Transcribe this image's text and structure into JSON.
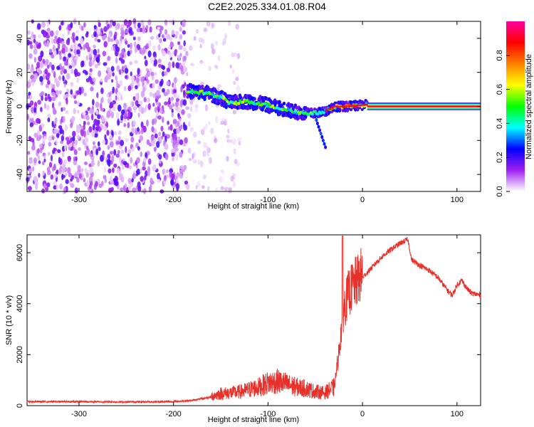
{
  "title": "C2E2.2025.334.01.08.R04",
  "chart_data": [
    {
      "type": "heatmap",
      "xlabel": "Height of straight line (km)",
      "ylabel": "Frequency (Hz)",
      "xlim": [
        -355,
        125
      ],
      "ylim": [
        -50,
        50
      ],
      "xticks": [
        -300,
        -200,
        -100,
        0,
        100
      ],
      "yticks": [
        -40,
        -20,
        0,
        20,
        40
      ],
      "colorbar": {
        "label": "Normalized spectral amplitude",
        "range": [
          0,
          1
        ],
        "ticks": [
          "0.0",
          "0.2",
          "0.4",
          "0.6",
          "0.8"
        ],
        "tick_values": [
          0,
          0.2,
          0.4,
          0.6,
          0.8
        ],
        "colors": [
          "#ffffff",
          "#a020f0",
          "#0000ff",
          "#00ffff",
          "#00ff00",
          "#ffff00",
          "#ff8000",
          "#ff0000",
          "#ff00a0"
        ]
      },
      "description_features": {
        "noise_region_x": [
          -355,
          -185
        ],
        "track_start_x": -185,
        "track_points": [
          [
            -185,
            9
          ],
          [
            -165,
            8
          ],
          [
            -150,
            5
          ],
          [
            -140,
            2
          ],
          [
            -125,
            3
          ],
          [
            -110,
            2
          ],
          [
            -95,
            0
          ],
          [
            -80,
            -2
          ],
          [
            -65,
            -4
          ],
          [
            -50,
            -4
          ],
          [
            -40,
            -3
          ],
          [
            -30,
            0
          ],
          [
            -15,
            0
          ],
          [
            5,
            1
          ],
          [
            125,
            0
          ]
        ],
        "steady_tone_x": [
          5,
          125
        ],
        "steady_tone_freq": 0
      }
    },
    {
      "type": "line",
      "xlabel": "Height of straight line (km)",
      "ylabel": "SNR (10 * v/v)",
      "xlim": [
        -355,
        125
      ],
      "ylim": [
        0,
        6700
      ],
      "xticks": [
        -300,
        -200,
        -100,
        0,
        100
      ],
      "yticks": [
        0,
        2000,
        4000,
        6000
      ],
      "color": "#e8302a",
      "series": [
        {
          "name": "SNR",
          "x": [
            -355,
            -300,
            -250,
            -200,
            -180,
            -160,
            -150,
            -130,
            -110,
            -100,
            -90,
            -80,
            -70,
            -60,
            -50,
            -40,
            -30,
            -25,
            -22,
            -20,
            -15,
            -10,
            -5,
            0,
            10,
            20,
            30,
            40,
            48,
            52,
            60,
            70,
            80,
            90,
            95,
            100,
            105,
            110,
            115,
            125
          ],
          "values": [
            150,
            150,
            140,
            150,
            200,
            330,
            420,
            480,
            650,
            800,
            850,
            750,
            650,
            600,
            500,
            450,
            650,
            2000,
            3000,
            3600,
            4200,
            4500,
            4700,
            5000,
            5400,
            5800,
            6100,
            6350,
            6500,
            5700,
            5500,
            5300,
            5000,
            4500,
            4300,
            4700,
            4900,
            4600,
            4400,
            4300
          ]
        }
      ]
    }
  ]
}
